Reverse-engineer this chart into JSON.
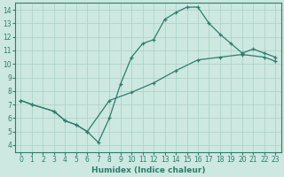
{
  "xlabel": "Humidex (Indice chaleur)",
  "ylabel": "",
  "xlim": [
    -0.5,
    23.5
  ],
  "ylim": [
    3.5,
    14.5
  ],
  "xticks": [
    0,
    1,
    2,
    3,
    4,
    5,
    6,
    7,
    8,
    9,
    10,
    11,
    12,
    13,
    14,
    15,
    16,
    17,
    18,
    19,
    20,
    21,
    22,
    23
  ],
  "yticks": [
    4,
    5,
    6,
    7,
    8,
    9,
    10,
    11,
    12,
    13,
    14
  ],
  "bg_color": "#cce8e0",
  "grid_color": "#aacfc5",
  "line_color": "#2d7d6e",
  "curve1_x": [
    0,
    1,
    3,
    4,
    5,
    6,
    7,
    8,
    9,
    10,
    11,
    12,
    13,
    14,
    15,
    16,
    17,
    18,
    19,
    20,
    21,
    22,
    23
  ],
  "curve1_y": [
    7.3,
    7.0,
    6.5,
    5.8,
    5.5,
    5.0,
    4.2,
    6.0,
    8.5,
    10.5,
    11.5,
    11.8,
    13.3,
    13.8,
    14.2,
    14.2,
    13.0,
    12.2,
    11.5,
    10.8,
    11.1,
    10.8,
    10.5
  ],
  "curve2_x": [
    0,
    1,
    3,
    4,
    5,
    6,
    8,
    10,
    12,
    14,
    16,
    18,
    20,
    22,
    23
  ],
  "curve2_y": [
    7.3,
    7.0,
    6.5,
    5.8,
    5.5,
    5.0,
    7.3,
    7.9,
    8.6,
    9.5,
    10.3,
    10.5,
    10.7,
    10.5,
    10.2
  ]
}
